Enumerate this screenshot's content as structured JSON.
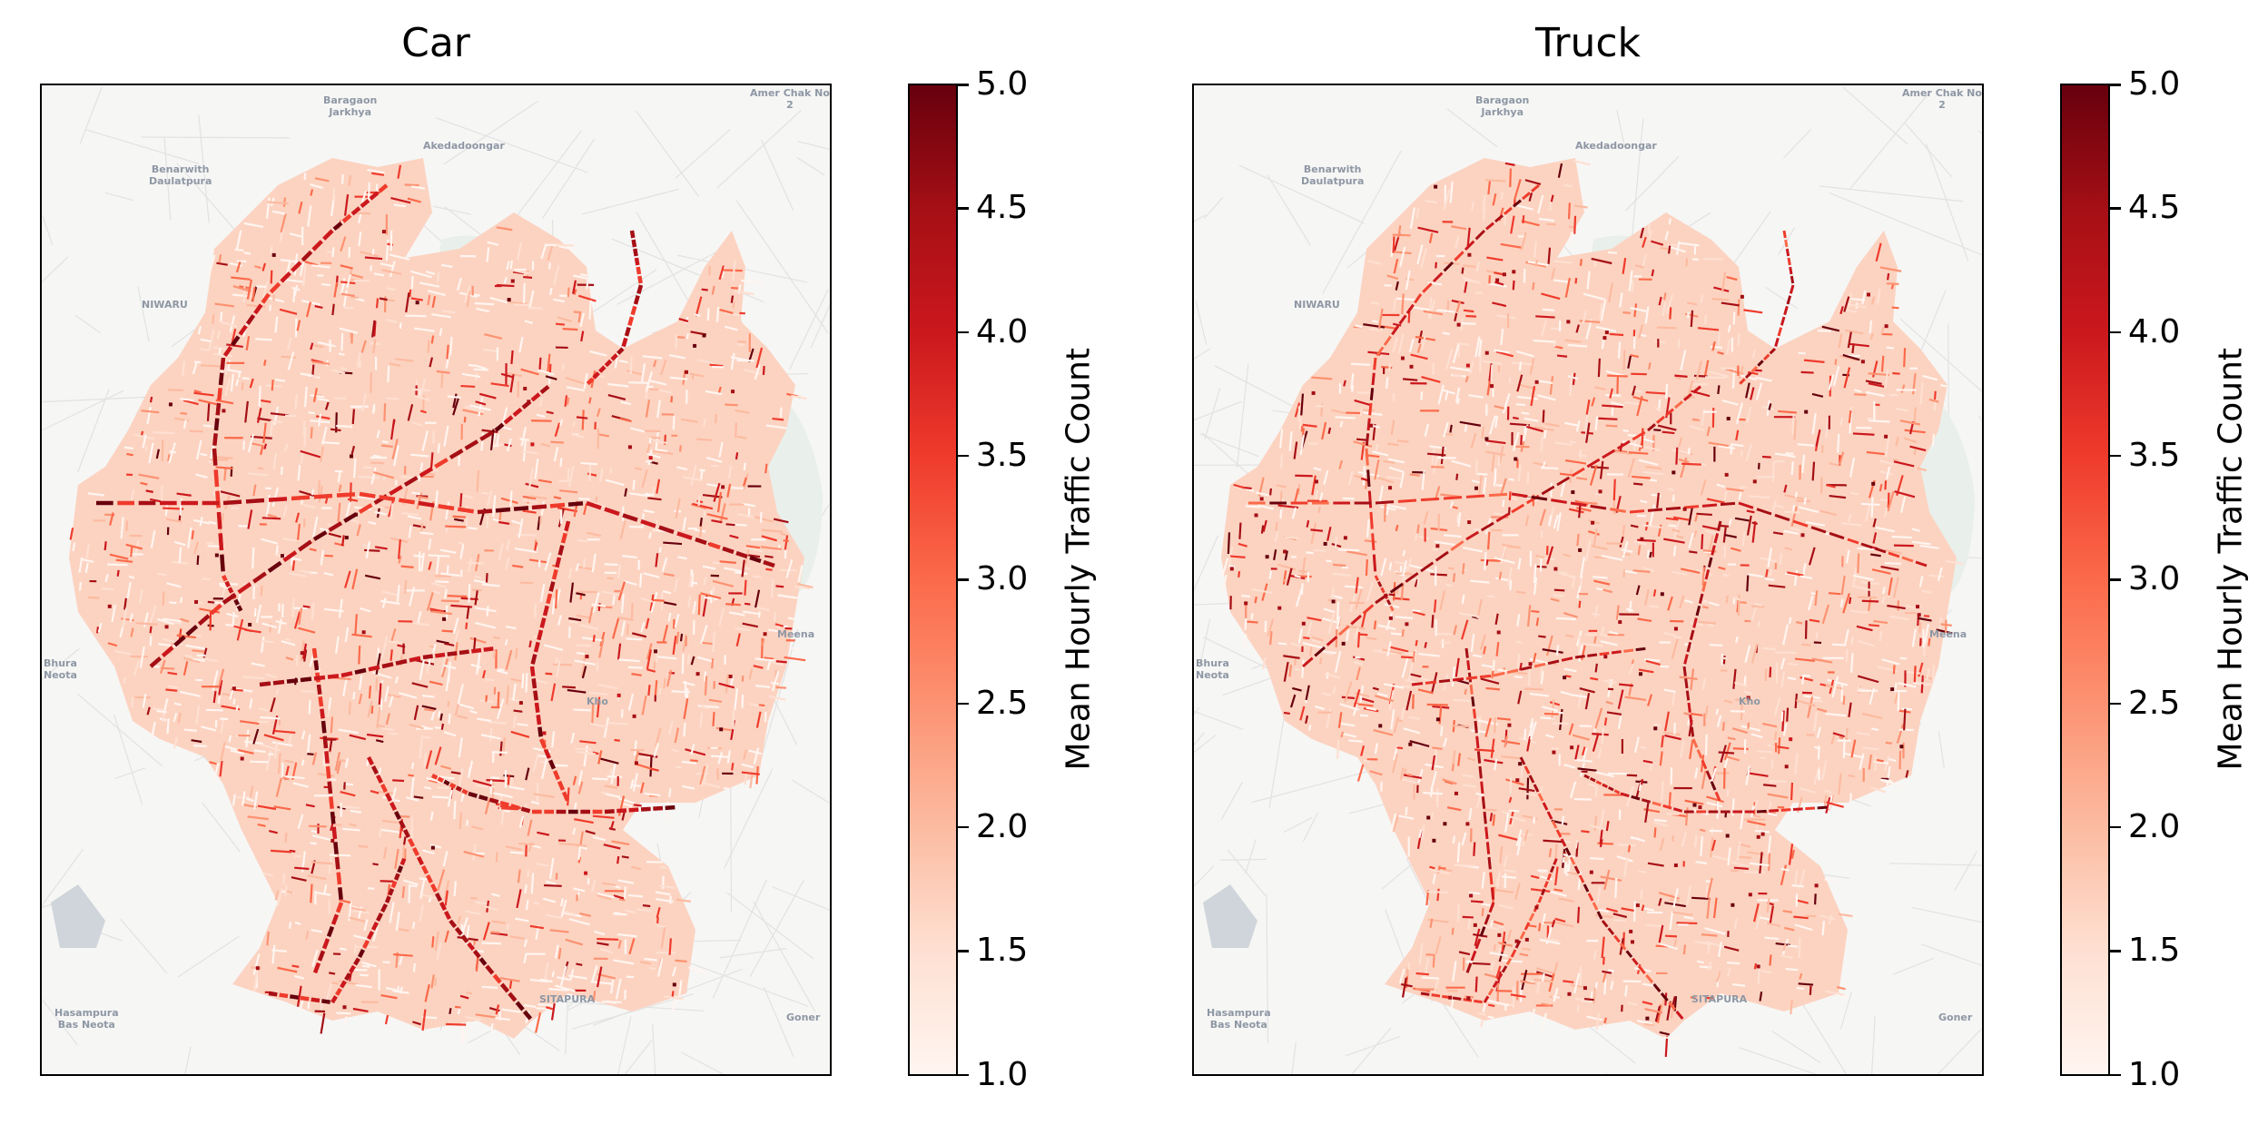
{
  "panels": [
    {
      "title": "Car",
      "colorbar": {
        "label": "Mean Hourly Traffic Count",
        "ticks": [
          "5.0",
          "4.5",
          "4.0",
          "3.5",
          "3.0",
          "2.5",
          "2.0",
          "1.5",
          "1.0"
        ],
        "range": [
          1.0,
          5.0
        ],
        "colormap": "Reds"
      },
      "place_labels": [
        {
          "text": "Baragaon\nJarkhya"
        },
        {
          "text": "Amer Chak No\n2"
        },
        {
          "text": "Akedadoongar"
        },
        {
          "text": "Benarwith\nDaulatpura"
        },
        {
          "text": "NIWARU"
        },
        {
          "text": "Bhura\nNeota"
        },
        {
          "text": "Kho"
        },
        {
          "text": "Meena"
        },
        {
          "text": "SITAPURA"
        },
        {
          "text": "Hasampura\nBas Neota"
        },
        {
          "text": "Goner"
        }
      ]
    },
    {
      "title": "Truck",
      "colorbar": {
        "label": "Mean Hourly Traffic Count",
        "ticks": [
          "5.0",
          "4.5",
          "4.0",
          "3.5",
          "3.0",
          "2.5",
          "2.0",
          "1.5",
          "1.0"
        ],
        "range": [
          1.0,
          5.0
        ],
        "colormap": "Reds"
      },
      "place_labels": [
        {
          "text": "Baragaon\nJarkhya"
        },
        {
          "text": "Amer Chak No\n2"
        },
        {
          "text": "Akedadoongar"
        },
        {
          "text": "Benarwith\nDaulatpura"
        },
        {
          "text": "NIWARU"
        },
        {
          "text": "Bhura\nNeota"
        },
        {
          "text": "Kho"
        },
        {
          "text": "Meena"
        },
        {
          "text": "SITAPURA"
        },
        {
          "text": "Hasampura\nBas Neota"
        },
        {
          "text": "Goner"
        }
      ]
    }
  ],
  "colors": {
    "low": "#fff5f0",
    "mid": "#fb6a4a",
    "high": "#67000d",
    "basemap": "#f6f6f5",
    "green_area": "#e9efea",
    "water": "#cfd5da"
  }
}
